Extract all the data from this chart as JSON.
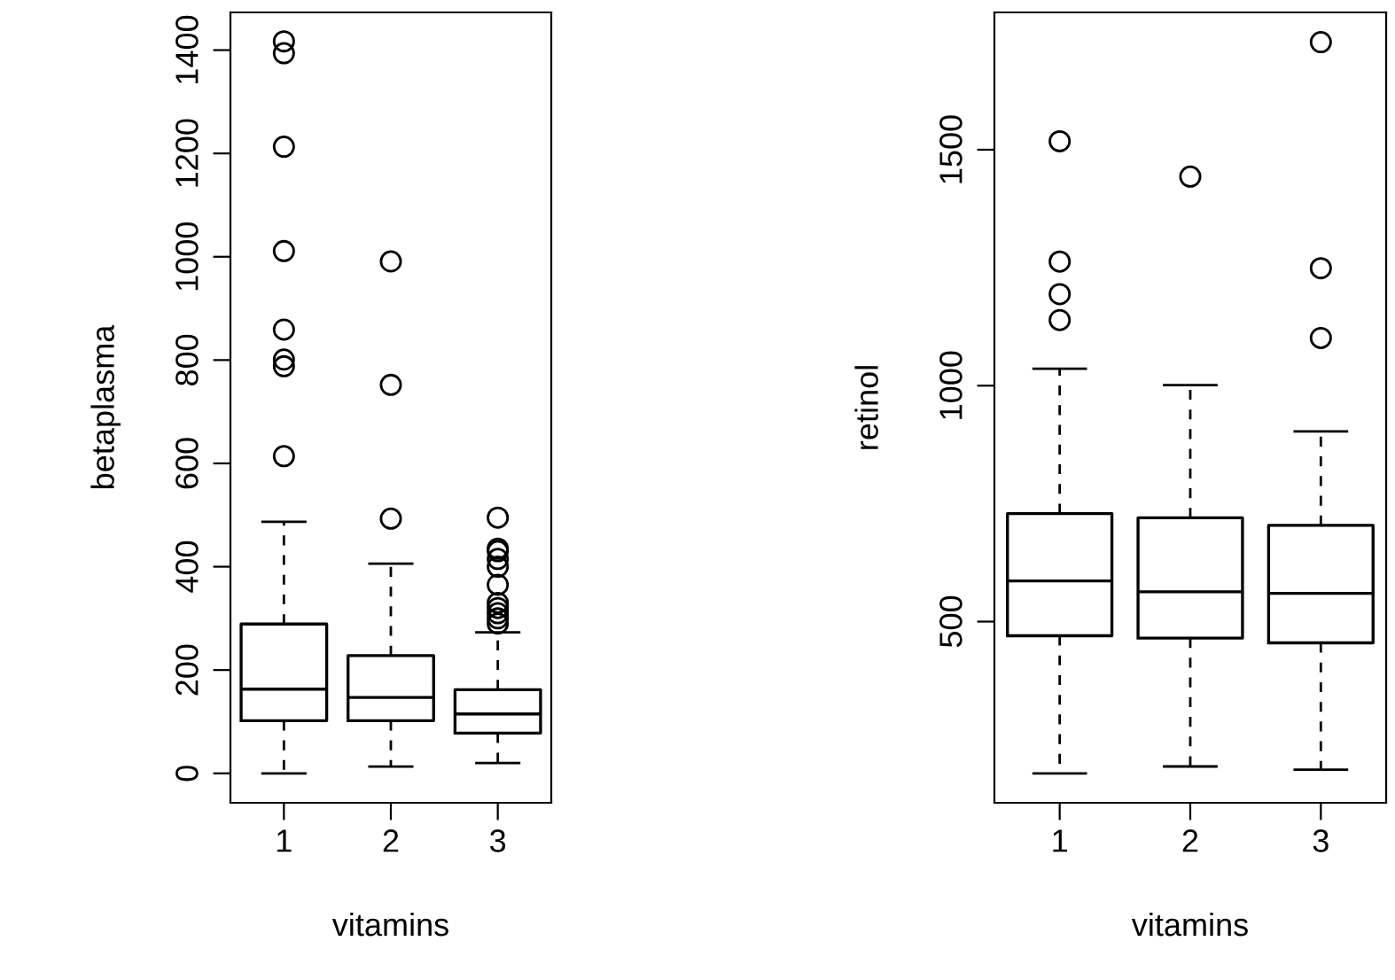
{
  "chart_data": [
    {
      "type": "box",
      "xlabel": "vitamins",
      "ylabel": "betaplasma",
      "categories": [
        "1",
        "2",
        "3"
      ],
      "ylim": [
        -57,
        1473
      ],
      "yticks": [
        0,
        200,
        400,
        600,
        800,
        1000,
        1200,
        1400
      ],
      "grid": false,
      "boxes": [
        {
          "low": 0,
          "q1": 102,
          "median": 163,
          "q3": 289,
          "high": 487,
          "outliers": [
            614,
            788,
            801,
            859,
            1011,
            1213,
            1394,
            1417
          ]
        },
        {
          "low": 13,
          "q1": 102,
          "median": 147,
          "q3": 228,
          "high": 406,
          "outliers": [
            493,
            752,
            991
          ]
        },
        {
          "low": 20,
          "q1": 78,
          "median": 115,
          "q3": 162,
          "high": 273,
          "outliers": [
            290,
            300,
            310,
            320,
            330,
            365,
            400,
            415,
            430,
            435,
            495
          ]
        }
      ]
    },
    {
      "type": "box",
      "xlabel": "vitamins",
      "ylabel": "retinol",
      "categories": [
        "1",
        "2",
        "3"
      ],
      "ylim": [
        116,
        1791
      ],
      "yticks": [
        500,
        1000,
        1500
      ],
      "grid": false,
      "boxes": [
        {
          "low": 178,
          "q1": 470,
          "median": 586,
          "q3": 729,
          "high": 1036,
          "outliers": [
            1139,
            1194,
            1263,
            1518
          ]
        },
        {
          "low": 193,
          "q1": 465,
          "median": 563,
          "q3": 720,
          "high": 1001,
          "outliers": [
            1443
          ]
        },
        {
          "low": 186,
          "q1": 455,
          "median": 560,
          "q3": 704,
          "high": 903,
          "outliers": [
            1101,
            1249,
            1728
          ]
        }
      ]
    }
  ]
}
